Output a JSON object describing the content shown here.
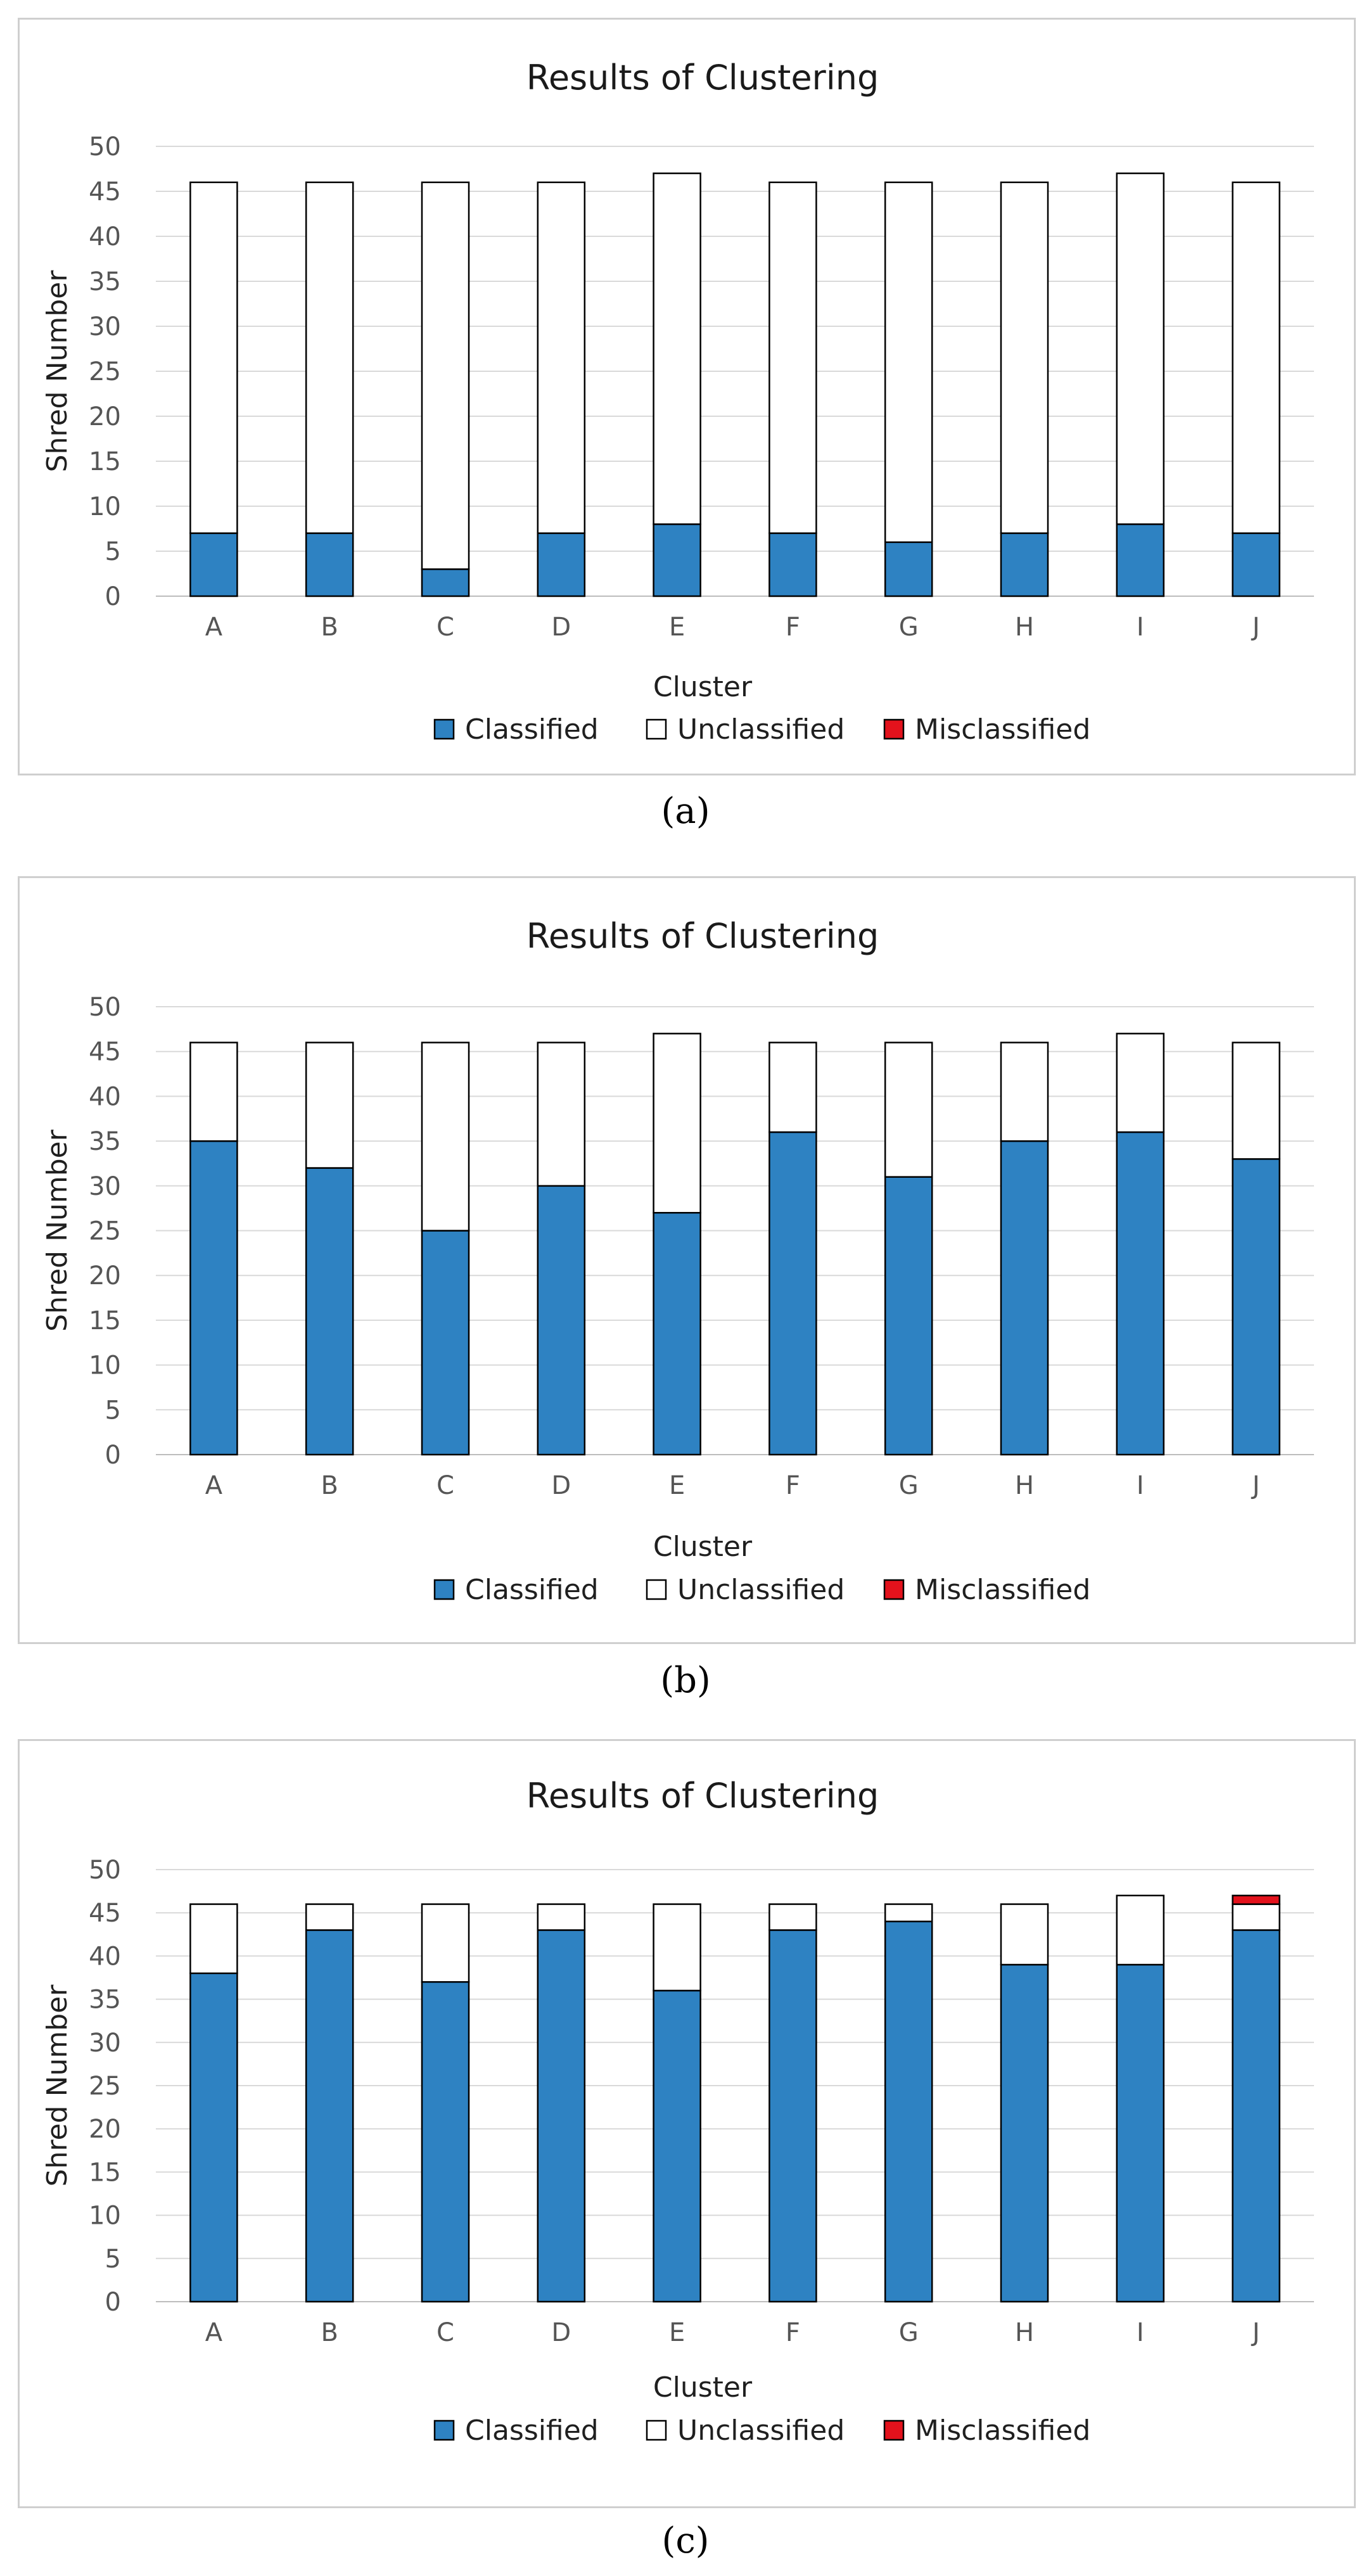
{
  "chart_data": [
    {
      "type": "bar",
      "stacked": true,
      "title": "Results of Clustering",
      "xlabel": "Cluster",
      "ylabel": "Shred Number",
      "ylim": [
        0,
        50
      ],
      "yticks": [
        0,
        5,
        10,
        15,
        20,
        25,
        30,
        35,
        40,
        45,
        50
      ],
      "grid": true,
      "legend": "bottom",
      "categories": [
        "A",
        "B",
        "C",
        "D",
        "E",
        "F",
        "G",
        "H",
        "I",
        "J"
      ],
      "series": [
        {
          "name": "Classified",
          "color": "#2e82c2",
          "values": [
            7,
            7,
            3,
            7,
            8,
            7,
            6,
            7,
            8,
            7
          ]
        },
        {
          "name": "Unclassified",
          "color": "#ffffff",
          "values": [
            39,
            39,
            43,
            39,
            39,
            39,
            40,
            39,
            39,
            39
          ]
        },
        {
          "name": "Misclassified",
          "color": "#e3121c",
          "values": [
            0,
            0,
            0,
            0,
            0,
            0,
            0,
            0,
            0,
            0
          ]
        }
      ]
    },
    {
      "type": "bar",
      "stacked": true,
      "title": "Results of Clustering",
      "xlabel": "Cluster",
      "ylabel": "Shred Number",
      "ylim": [
        0,
        50
      ],
      "yticks": [
        0,
        5,
        10,
        15,
        20,
        25,
        30,
        35,
        40,
        45,
        50
      ],
      "grid": true,
      "legend": "bottom",
      "categories": [
        "A",
        "B",
        "C",
        "D",
        "E",
        "F",
        "G",
        "H",
        "I",
        "J"
      ],
      "series": [
        {
          "name": "Classified",
          "color": "#2e82c2",
          "values": [
            35,
            32,
            25,
            30,
            27,
            36,
            31,
            35,
            36,
            33
          ]
        },
        {
          "name": "Unclassified",
          "color": "#ffffff",
          "values": [
            11,
            14,
            21,
            16,
            20,
            10,
            15,
            11,
            11,
            13
          ]
        },
        {
          "name": "Misclassified",
          "color": "#e3121c",
          "values": [
            0,
            0,
            0,
            0,
            0,
            0,
            0,
            0,
            0,
            0
          ]
        }
      ]
    },
    {
      "type": "bar",
      "stacked": true,
      "title": "Results of Clustering",
      "xlabel": "Cluster",
      "ylabel": "Shred Number",
      "ylim": [
        0,
        50
      ],
      "yticks": [
        0,
        5,
        10,
        15,
        20,
        25,
        30,
        35,
        40,
        45,
        50
      ],
      "grid": true,
      "legend": "bottom",
      "categories": [
        "A",
        "B",
        "C",
        "D",
        "E",
        "F",
        "G",
        "H",
        "I",
        "J"
      ],
      "series": [
        {
          "name": "Classified",
          "color": "#2e82c2",
          "values": [
            38,
            43,
            37,
            43,
            36,
            43,
            44,
            39,
            39,
            43
          ]
        },
        {
          "name": "Unclassified",
          "color": "#ffffff",
          "values": [
            8,
            3,
            9,
            3,
            10,
            3,
            2,
            7,
            8,
            3
          ]
        },
        {
          "name": "Misclassified",
          "color": "#e3121c",
          "values": [
            0,
            0,
            0,
            0,
            0,
            0,
            0,
            0,
            0,
            1
          ]
        }
      ]
    }
  ],
  "captions": [
    "(a)",
    "(b)",
    "(c)"
  ]
}
